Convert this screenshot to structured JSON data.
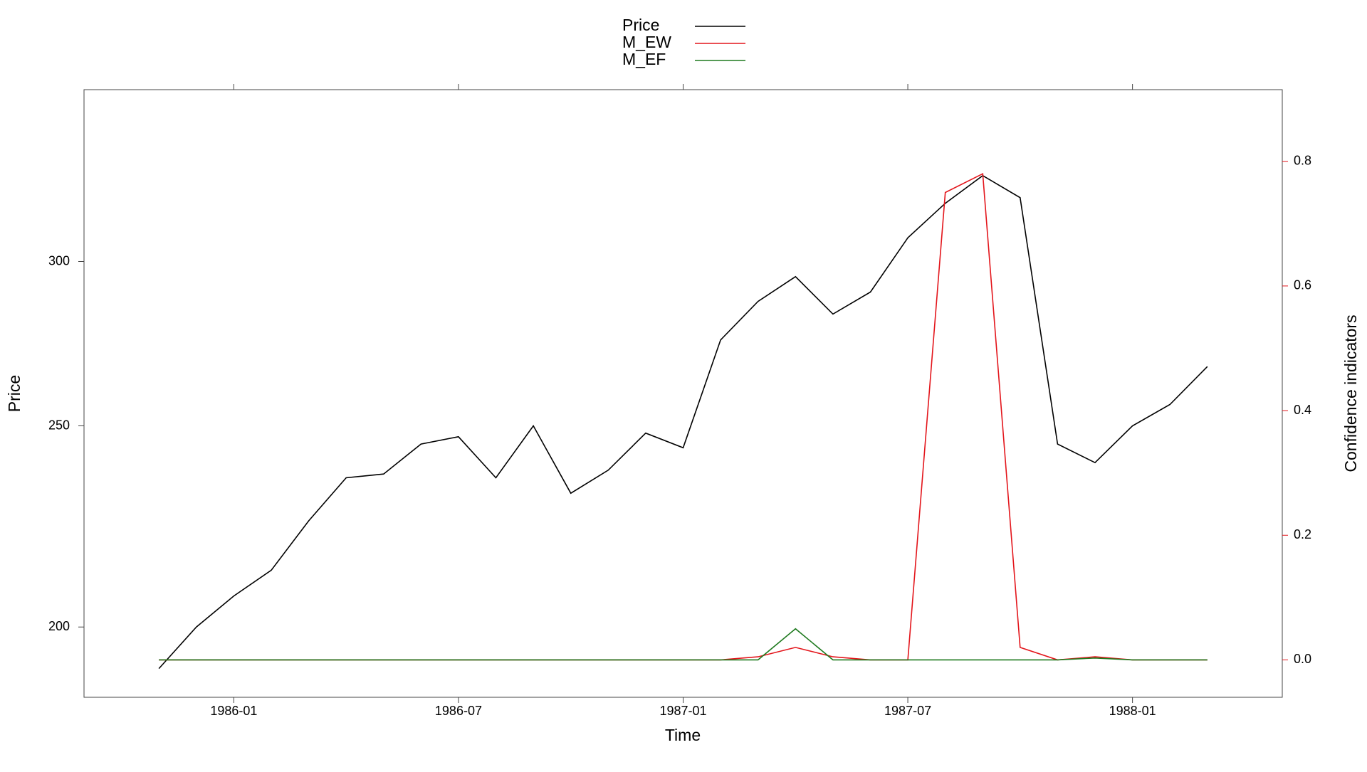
{
  "chart_data": {
    "type": "line",
    "x_label": "Time",
    "y_label": "Price",
    "y2_label": "Confidence indicators",
    "x": [
      "1985-11",
      "1985-12",
      "1986-01",
      "1986-02",
      "1986-03",
      "1986-04",
      "1986-05",
      "1986-06",
      "1986-07",
      "1986-08",
      "1986-09",
      "1986-10",
      "1986-11",
      "1986-12",
      "1987-01",
      "1987-02",
      "1987-03",
      "1987-04",
      "1987-05",
      "1987-06",
      "1987-07",
      "1987-08",
      "1987-09",
      "1987-10",
      "1987-11",
      "1987-12",
      "1988-01",
      "1988-02",
      "1988-03"
    ],
    "xlim": [
      "1985-09",
      "1988-05"
    ],
    "xticks": [
      "1986-01",
      "1986-07",
      "1987-01",
      "1987-07",
      "1988-01"
    ],
    "ylim": [
      185,
      363
    ],
    "log_y": true,
    "yticks": [
      200,
      250,
      300
    ],
    "y2lim": [
      -0.06,
      0.915
    ],
    "y2ticks": [
      {
        "value": 0,
        "label": "0.0"
      },
      0.2,
      0.4,
      0.6,
      0.8
    ],
    "y2_color": "#e3151b",
    "legend": "top",
    "series": [
      {
        "name": "Price",
        "color": "#000000",
        "values": [
          191,
          200,
          207,
          213,
          225,
          236,
          237,
          245,
          247,
          236,
          250,
          232,
          238,
          248,
          244,
          275,
          287,
          295,
          283,
          290,
          308,
          320,
          330,
          322,
          245,
          240,
          250,
          256,
          267
        ]
      },
      {
        "name": "M_EW",
        "color": "#e3151b",
        "axis": "y2",
        "values": [
          0,
          0,
          0,
          0,
          0,
          0,
          0,
          0,
          0,
          0,
          0,
          0,
          0,
          0,
          0,
          0,
          0.005,
          0.02,
          0.005,
          0,
          0,
          0.75,
          0.78,
          0.02,
          0,
          0.005,
          0,
          0,
          0
        ]
      },
      {
        "name": "M_EF",
        "color": "#1f7a1f",
        "axis": "y2",
        "values": [
          0,
          0,
          0,
          0,
          0,
          0,
          0,
          0,
          0,
          0,
          0,
          0,
          0,
          0,
          0,
          0,
          0,
          0.05,
          0,
          0,
          0,
          0,
          0,
          0,
          0,
          0.003,
          0,
          0,
          0
        ]
      }
    ]
  }
}
